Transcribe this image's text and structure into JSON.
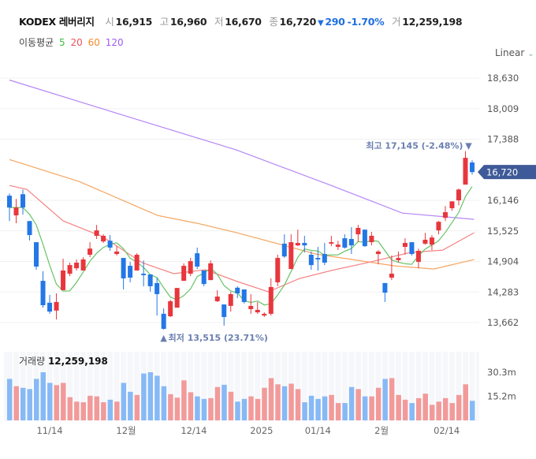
{
  "header": {
    "name": "KODEX 레버리지",
    "open_label": "시",
    "open": "16,915",
    "high_label": "고",
    "high": "16,960",
    "low_label": "저",
    "low": "16,670",
    "close_label": "종",
    "close": "16,720",
    "change_arrow": "▼",
    "change": "290",
    "change_pct": "-1.70%",
    "volume_label": "거",
    "volume": "12,259,198"
  },
  "moving_avg": {
    "label": "이동평균",
    "periods": [
      "5",
      "20",
      "60",
      "120"
    ]
  },
  "scale_selector": {
    "label": "Linear"
  },
  "colors": {
    "up": "#e8363d",
    "down": "#2377e6",
    "vol_up": "#f29a9a",
    "vol_down": "#87b9f5",
    "ma5": "#66c466",
    "ma20": "#f58383",
    "ma60": "#f6a55f",
    "ma120": "#b585f7",
    "price_tag": "#3f5a98"
  },
  "chart_data": {
    "type": "candlestick",
    "y_ticks": [
      "18,630",
      "18,009",
      "17,388",
      "16,146",
      "15,525",
      "14,904",
      "14,283",
      "13,662"
    ],
    "y_tick_values": [
      18630,
      18009,
      17388,
      16146,
      15525,
      14904,
      14283,
      13662
    ],
    "ylim": [
      13662,
      18630
    ],
    "current_price_label": "16,720",
    "current_price": 16720,
    "high_annotation": "최고 17,145 (-2.48%)",
    "high_annotation_arrow": "▼",
    "high_index": 68,
    "low_annotation": "최저 13,515 (23.71%)",
    "low_annotation_arrow": "▲",
    "low_index": 23,
    "x_labels": [
      {
        "label": "11/14",
        "index": 6
      },
      {
        "label": "12월",
        "index": 17.4
      },
      {
        "label": "12/14",
        "index": 27.5
      },
      {
        "label": "2025",
        "index": 37.6
      },
      {
        "label": "01/14",
        "index": 46
      },
      {
        "label": "2월",
        "index": 55.5
      },
      {
        "label": "02/14",
        "index": 65.2
      }
    ],
    "ohlc": [
      [
        16240,
        16285,
        15725,
        16000
      ],
      [
        15840,
        16175,
        15680,
        16000
      ],
      [
        16270,
        16365,
        15855,
        16000
      ],
      [
        15725,
        15725,
        15330,
        15440
      ],
      [
        15295,
        15295,
        14735,
        14800
      ],
      [
        14510,
        14705,
        13965,
        14015
      ],
      [
        14065,
        14225,
        13840,
        13885
      ],
      [
        13905,
        14255,
        13725,
        14080
      ],
      [
        14320,
        14960,
        14320,
        14720
      ],
      [
        14655,
        14880,
        14605,
        14830
      ],
      [
        14765,
        14945,
        14720,
        14880
      ],
      [
        14720,
        14990,
        14720,
        14945
      ],
      [
        15040,
        15295,
        14990,
        15165
      ],
      [
        15425,
        15645,
        15360,
        15535
      ],
      [
        15310,
        15455,
        15280,
        15425
      ],
      [
        15325,
        15440,
        15120,
        15185
      ],
      [
        15055,
        15215,
        15025,
        15105
      ],
      [
        14975,
        14975,
        14335,
        14560
      ],
      [
        14815,
        14895,
        14480,
        14575
      ],
      [
        14720,
        15070,
        14720,
        15040
      ],
      [
        14655,
        14925,
        14400,
        14625
      ],
      [
        14640,
        14640,
        14290,
        14400
      ],
      [
        14465,
        14575,
        13805,
        14240
      ],
      [
        13840,
        13950,
        13515,
        13535
      ],
      [
        13790,
        14125,
        13775,
        14095
      ],
      [
        13965,
        14365,
        13965,
        14365
      ],
      [
        14510,
        14865,
        14510,
        14815
      ],
      [
        14655,
        14975,
        14605,
        14910
      ],
      [
        15070,
        15185,
        14750,
        14800
      ],
      [
        14720,
        14720,
        14400,
        14445
      ],
      [
        14525,
        14925,
        14525,
        14865
      ],
      [
        14095,
        14320,
        14080,
        14190
      ],
      [
        14030,
        14030,
        13600,
        13775
      ],
      [
        14000,
        14285,
        13885,
        14240
      ],
      [
        14370,
        14400,
        14160,
        14255
      ],
      [
        14335,
        14335,
        14050,
        14080
      ],
      [
        13935,
        14240,
        13840,
        14000
      ],
      [
        13870,
        14080,
        13840,
        13920
      ],
      [
        13805,
        13870,
        13775,
        13840
      ],
      [
        13840,
        14560,
        13805,
        14385
      ],
      [
        14480,
        15040,
        14400,
        14975
      ],
      [
        15265,
        15455,
        14975,
        15005
      ],
      [
        14750,
        15455,
        14750,
        15295
      ],
      [
        15230,
        15550,
        15215,
        15280
      ],
      [
        15280,
        15425,
        15085,
        15230
      ],
      [
        15040,
        15105,
        14735,
        14830
      ],
      [
        14975,
        15200,
        14720,
        14945
      ],
      [
        15055,
        15280,
        14830,
        14880
      ],
      [
        15265,
        15425,
        15215,
        15295
      ],
      [
        15200,
        15325,
        15135,
        15245
      ],
      [
        15375,
        15455,
        15165,
        15185
      ],
      [
        15360,
        15600,
        15055,
        15230
      ],
      [
        15455,
        15645,
        15295,
        15585
      ],
      [
        15550,
        15550,
        15200,
        15215
      ],
      [
        15295,
        15505,
        15230,
        15425
      ],
      [
        15055,
        15135,
        14845,
        15105
      ],
      [
        14465,
        14465,
        14080,
        14270
      ],
      [
        14575,
        15025,
        14525,
        14655
      ],
      [
        14930,
        15105,
        14880,
        14975
      ],
      [
        15200,
        15375,
        15040,
        15280
      ],
      [
        15295,
        15295,
        15025,
        15055
      ],
      [
        14895,
        15165,
        14765,
        15120
      ],
      [
        15265,
        15485,
        15245,
        15345
      ],
      [
        15245,
        15440,
        15135,
        15390
      ],
      [
        15535,
        15725,
        15455,
        15710
      ],
      [
        15790,
        16030,
        15725,
        15905
      ],
      [
        15985,
        16125,
        15935,
        16125
      ],
      [
        16145,
        16385,
        16045,
        16365
      ],
      [
        16465,
        17145,
        16465,
        17010
      ],
      [
        16915,
        16960,
        16670,
        16720
      ]
    ],
    "ma20": [
      [
        0,
        16447
      ],
      [
        2.6,
        16367
      ],
      [
        8,
        15727
      ],
      [
        13.9,
        15407
      ],
      [
        19.8,
        14879
      ],
      [
        24.5,
        14655
      ],
      [
        29.2,
        14735
      ],
      [
        34,
        14495
      ],
      [
        38.6,
        14287
      ],
      [
        43.3,
        14559
      ],
      [
        48,
        14719
      ],
      [
        53.9,
        14895
      ],
      [
        59.8,
        15087
      ],
      [
        64.6,
        15135
      ],
      [
        69.3,
        15487
      ]
    ],
    "ma60": [
      [
        0,
        16975
      ],
      [
        10.4,
        16527
      ],
      [
        22.1,
        15839
      ],
      [
        28,
        15679
      ],
      [
        33.9,
        15487
      ],
      [
        45.7,
        15055
      ],
      [
        57.4,
        14815
      ],
      [
        63.3,
        14750
      ],
      [
        69.3,
        14943
      ]
    ],
    "ma120": [
      [
        0,
        18590
      ],
      [
        16.7,
        17887
      ],
      [
        33.9,
        17167
      ],
      [
        48,
        16447
      ],
      [
        58.6,
        15887
      ],
      [
        69.3,
        15759
      ]
    ],
    "volume": {
      "label": "거래량",
      "last_value": "12,259,198",
      "ticks": [
        "30.3m",
        "15.2m"
      ],
      "tick_values": [
        30.3,
        15.2
      ],
      "unit": "million",
      "values": [
        26.1,
        21.5,
        20.5,
        19.7,
        26.1,
        30.3,
        23.6,
        22.2,
        23.6,
        14.6,
        11.8,
        11.4,
        15.5,
        15.1,
        11.4,
        13.0,
        11.8,
        23.6,
        18.0,
        16.0,
        29.5,
        30.3,
        28.1,
        21.5,
        16.5,
        14.3,
        25.2,
        17.7,
        15.1,
        13.5,
        14.0,
        21.0,
        22.4,
        18.0,
        11.8,
        13.5,
        15.1,
        13.5,
        20.5,
        26.6,
        22.7,
        21.5,
        23.1,
        19.7,
        11.4,
        15.5,
        13.5,
        15.1,
        16.0,
        10.9,
        10.9,
        21.0,
        19.7,
        15.1,
        15.1,
        20.5,
        26.1,
        26.6,
        16.0,
        13.0,
        10.9,
        14.0,
        16.8,
        9.8,
        11.8,
        14.0,
        10.9,
        16.0,
        22.7,
        12.3
      ]
    }
  }
}
